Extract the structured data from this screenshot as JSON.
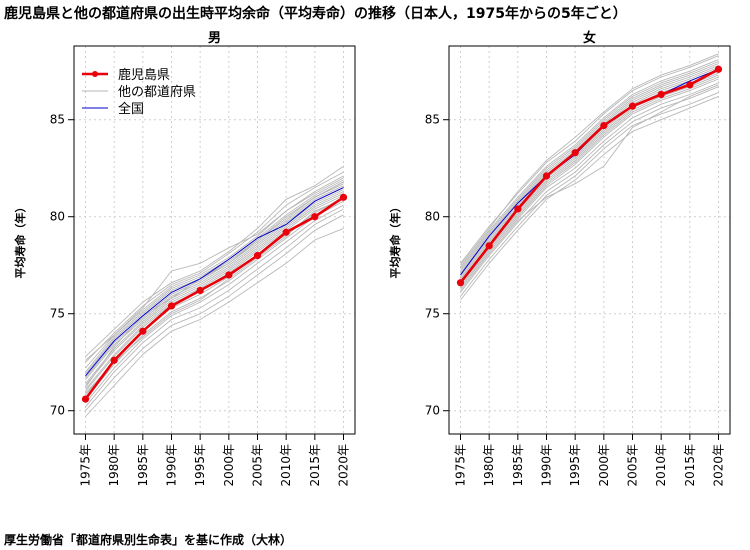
{
  "title": "鹿児島県と他の都道府県の出生時平均余命（平均寿命）の推移（日本人，1975年からの5年ごと）",
  "source": "厚生労働省「都道府県別生命表」を基に作成（大林）",
  "legend": {
    "position": "top-left",
    "items": [
      {
        "label": "鹿児島県",
        "color": "#e8000b",
        "style": "line-with-points"
      },
      {
        "label": "他の都道府県",
        "color": "#b5b5b5",
        "style": "thin-line"
      },
      {
        "label": "全国",
        "color": "#0000cc",
        "style": "thin-line"
      }
    ]
  },
  "chart_data": [
    {
      "type": "line",
      "title": "男",
      "ylabel": "平均寿命（年）",
      "xlabel": "",
      "grid": true,
      "ylim": [
        68.8,
        88.8
      ],
      "yticks": [
        70,
        75,
        80,
        85
      ],
      "categories": [
        "1975年",
        "1980年",
        "1985年",
        "1990年",
        "1995年",
        "2000年",
        "2005年",
        "2010年",
        "2015年",
        "2020年"
      ],
      "series": [
        {
          "name": "鹿児島県",
          "color": "#e8000b",
          "values": [
            70.6,
            72.6,
            74.1,
            75.4,
            76.2,
            77.0,
            78.0,
            79.2,
            80.0,
            81.0
          ]
        },
        {
          "name": "全国",
          "color": "#0000cc",
          "values": [
            71.8,
            73.6,
            74.9,
            76.1,
            76.8,
            77.8,
            78.9,
            79.6,
            80.8,
            81.5
          ]
        }
      ],
      "others": [
        [
          72.8,
          74.2,
          75.6,
          76.6,
          77.2,
          78.2,
          79.4,
          80.9,
          81.6,
          82.6
        ],
        [
          72.5,
          74.0,
          75.4,
          76.5,
          77.1,
          78.1,
          79.2,
          80.6,
          81.5,
          82.3
        ],
        [
          72.2,
          73.9,
          75.2,
          76.4,
          77.0,
          77.9,
          79.0,
          80.3,
          81.3,
          82.1
        ],
        [
          72.0,
          73.8,
          75.1,
          76.3,
          76.9,
          77.8,
          78.9,
          80.1,
          81.1,
          81.9
        ],
        [
          71.9,
          73.7,
          75.0,
          76.2,
          76.8,
          77.7,
          78.8,
          80.0,
          81.0,
          81.8
        ],
        [
          71.7,
          73.5,
          74.8,
          76.0,
          76.7,
          77.6,
          78.7,
          79.8,
          80.9,
          81.6
        ],
        [
          71.6,
          73.4,
          74.7,
          75.9,
          76.6,
          77.5,
          78.6,
          79.7,
          80.8,
          81.5
        ],
        [
          71.4,
          73.2,
          74.6,
          75.8,
          76.5,
          77.4,
          78.5,
          79.6,
          80.7,
          81.4
        ],
        [
          71.3,
          73.1,
          74.5,
          75.7,
          76.4,
          77.3,
          78.4,
          79.5,
          80.6,
          81.3
        ],
        [
          71.1,
          72.9,
          74.4,
          75.6,
          76.3,
          77.2,
          78.3,
          79.4,
          80.5,
          81.2
        ],
        [
          71.0,
          72.8,
          74.3,
          75.5,
          76.2,
          77.1,
          78.2,
          79.3,
          80.4,
          81.1
        ],
        [
          70.8,
          72.6,
          74.1,
          75.3,
          76.0,
          76.9,
          78.0,
          79.1,
          80.2,
          81.0
        ],
        [
          70.6,
          72.4,
          73.9,
          75.1,
          75.8,
          76.7,
          77.8,
          78.9,
          80.0,
          80.8
        ],
        [
          70.4,
          72.2,
          73.7,
          74.9,
          75.6,
          76.5,
          77.6,
          78.7,
          79.8,
          80.6
        ],
        [
          70.2,
          72.0,
          73.5,
          74.7,
          75.3,
          76.2,
          77.3,
          78.4,
          79.6,
          80.4
        ],
        [
          70.0,
          71.7,
          73.2,
          74.4,
          75.0,
          75.9,
          77.0,
          78.1,
          79.3,
          80.1
        ],
        [
          69.7,
          71.3,
          72.9,
          74.1,
          74.7,
          75.6,
          76.6,
          77.6,
          78.8,
          79.4
        ],
        [
          72.6,
          73.9,
          75.3,
          77.2,
          77.6,
          78.4,
          79.1,
          80.3,
          81.2,
          82.0
        ],
        [
          71.2,
          73.3,
          74.9,
          75.8,
          76.8,
          77.6,
          78.8,
          79.9,
          81.0,
          81.7
        ],
        [
          70.9,
          72.5,
          73.8,
          75.0,
          75.7,
          76.8,
          77.9,
          79.0,
          80.3,
          80.9
        ]
      ]
    },
    {
      "type": "line",
      "title": "女",
      "ylabel": "平均寿命（年）",
      "xlabel": "",
      "grid": true,
      "ylim": [
        68.8,
        88.8
      ],
      "yticks": [
        70,
        75,
        80,
        85
      ],
      "categories": [
        "1975年",
        "1980年",
        "1985年",
        "1990年",
        "1995年",
        "2000年",
        "2005年",
        "2010年",
        "2015年",
        "2020年"
      ],
      "series": [
        {
          "name": "鹿児島県",
          "color": "#e8000b",
          "values": [
            76.6,
            78.5,
            80.4,
            82.1,
            83.3,
            84.7,
            85.7,
            86.3,
            86.8,
            87.6
          ]
        },
        {
          "name": "全国",
          "color": "#0000cc",
          "values": [
            77.0,
            79.0,
            80.7,
            82.1,
            83.2,
            84.7,
            85.7,
            86.3,
            87.0,
            87.6
          ]
        }
      ],
      "others": [
        [
          77.6,
          79.5,
          81.2,
          82.8,
          83.9,
          85.3,
          86.5,
          87.2,
          87.7,
          88.3
        ],
        [
          77.4,
          79.3,
          81.0,
          82.6,
          83.7,
          85.1,
          86.3,
          87.0,
          87.5,
          88.1
        ],
        [
          77.3,
          79.2,
          80.9,
          82.5,
          83.6,
          85.0,
          86.2,
          86.9,
          87.4,
          88.0
        ],
        [
          77.2,
          79.1,
          80.8,
          82.4,
          83.5,
          84.9,
          86.1,
          86.8,
          87.3,
          87.9
        ],
        [
          77.1,
          79.0,
          80.7,
          82.3,
          83.4,
          84.8,
          86.0,
          86.7,
          87.2,
          87.8
        ],
        [
          77.0,
          78.9,
          80.6,
          82.2,
          83.3,
          84.7,
          85.9,
          86.6,
          87.1,
          87.7
        ],
        [
          76.9,
          78.8,
          80.5,
          82.1,
          83.2,
          84.6,
          85.8,
          86.5,
          87.0,
          87.6
        ],
        [
          76.8,
          78.7,
          80.4,
          82.0,
          83.1,
          84.5,
          85.7,
          86.4,
          86.9,
          87.5
        ],
        [
          76.7,
          78.6,
          80.3,
          81.9,
          83.0,
          84.4,
          85.6,
          86.3,
          86.8,
          87.4
        ],
        [
          76.6,
          78.5,
          80.2,
          81.8,
          82.9,
          84.3,
          85.5,
          86.2,
          86.7,
          87.3
        ],
        [
          76.5,
          78.4,
          80.1,
          81.7,
          82.8,
          84.2,
          85.4,
          86.1,
          86.6,
          87.2
        ],
        [
          76.4,
          78.3,
          80.0,
          81.6,
          82.7,
          84.1,
          85.3,
          86.0,
          86.5,
          87.1
        ],
        [
          76.3,
          78.2,
          79.9,
          81.5,
          82.5,
          83.9,
          85.1,
          85.8,
          86.3,
          86.9
        ],
        [
          76.1,
          78.0,
          79.7,
          81.3,
          82.3,
          83.7,
          84.9,
          85.6,
          86.1,
          86.7
        ],
        [
          75.9,
          77.8,
          79.5,
          81.1,
          82.1,
          83.5,
          84.7,
          85.3,
          85.8,
          86.4
        ],
        [
          75.7,
          77.6,
          79.3,
          80.9,
          81.9,
          83.2,
          84.4,
          85.0,
          85.6,
          86.2
        ],
        [
          77.5,
          79.4,
          81.3,
          82.9,
          84.1,
          85.4,
          86.6,
          87.3,
          87.8,
          88.4
        ],
        [
          76.2,
          78.1,
          79.8,
          81.0,
          81.7,
          82.6,
          84.6,
          85.4,
          86.2,
          86.8
        ]
      ]
    }
  ]
}
